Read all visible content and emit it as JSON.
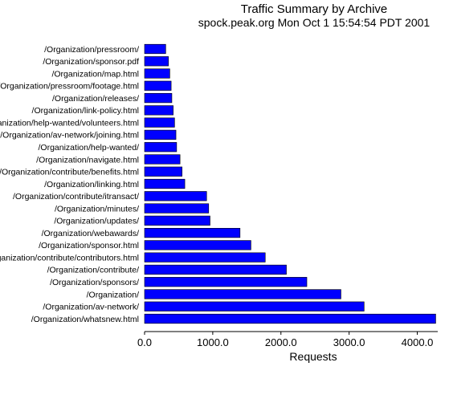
{
  "chart_data": {
    "type": "bar",
    "orientation": "horizontal",
    "title": "Traffic Summary by Archive",
    "subtitle": "spock.peak.org Mon Oct  1 15:54:54 PDT 2001",
    "xlabel": "Requests",
    "ylabel": "",
    "xlim": [
      0,
      4300
    ],
    "xticks": [
      "0.0",
      "1000.0",
      "2000.0",
      "3000.0",
      "4000.0"
    ],
    "grid": false,
    "bar_color": "#0000ff",
    "categories": [
      "/Organization/pressroom/",
      "/Organization/sponsor.pdf",
      "/Organization/map.html",
      "/Organization/pressroom/footage.html",
      "/Organization/releases/",
      "/Organization/link-policy.html",
      "/Organization/help-wanted/volunteers.html",
      "/Organization/av-network/joining.html",
      "/Organization/help-wanted/",
      "/Organization/navigate.html",
      "/Organization/contribute/benefits.html",
      "/Organization/linking.html",
      "/Organization/contribute/itransact/",
      "/Organization/minutes/",
      "/Organization/updates/",
      "/Organization/webawards/",
      "/Organization/sponsor.html",
      "/Organization/contribute/contributors.html",
      "/Organization/contribute/",
      "/Organization/sponsors/",
      "/Organization/",
      "/Organization/av-network/",
      "/Organization/whatsnew.html"
    ],
    "values": [
      310,
      350,
      370,
      390,
      400,
      420,
      440,
      460,
      470,
      520,
      550,
      590,
      910,
      940,
      960,
      1400,
      1560,
      1770,
      2080,
      2380,
      2880,
      3220,
      4270
    ]
  }
}
